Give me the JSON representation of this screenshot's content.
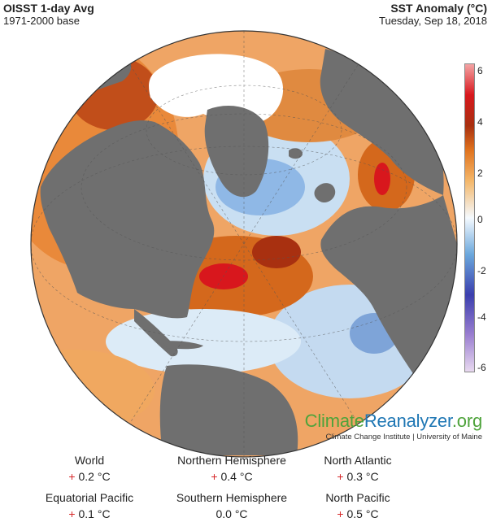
{
  "header": {
    "title_left": "OISST 1-day Avg",
    "subtitle_left": "1971-2000 base",
    "title_right": "SST Anomaly (°C)",
    "subtitle_right": "Tuesday, Sep 18, 2018"
  },
  "colorbar": {
    "ticks": [
      "6",
      "4",
      "2",
      "0",
      "-2",
      "-4",
      "-6"
    ],
    "range": [
      -6,
      6
    ],
    "colors": [
      "#e8d9f0",
      "#9a7ed0",
      "#3b3fae",
      "#6aa7dc",
      "#f5faff",
      "#f4b76a",
      "#e0731e",
      "#a83010",
      "#d8171d",
      "#f4a4a4"
    ]
  },
  "map": {
    "land_color": "#6f6f6f",
    "sea_ice_color": "#ffffff",
    "projection": "orthographic"
  },
  "branding": {
    "name_part1": "Climate",
    "name_part2": "Reanalyzer",
    "name_part3": ".org",
    "subtitle": "Climate Change Institute | University of Maine"
  },
  "stats": [
    {
      "label": "World",
      "sign": "+",
      "value": "0.2 °C"
    },
    {
      "label": "Northern Hemisphere",
      "sign": "+",
      "value": "0.4 °C"
    },
    {
      "label": "North Atlantic",
      "sign": "+",
      "value": "0.3 °C"
    },
    {
      "label": "Equatorial Pacific",
      "sign": "+",
      "value": "0.1 °C"
    },
    {
      "label": "Southern Hemisphere",
      "sign": "",
      "value": "0.0 °C"
    },
    {
      "label": "North Pacific",
      "sign": "+",
      "value": "0.5 °C"
    }
  ]
}
